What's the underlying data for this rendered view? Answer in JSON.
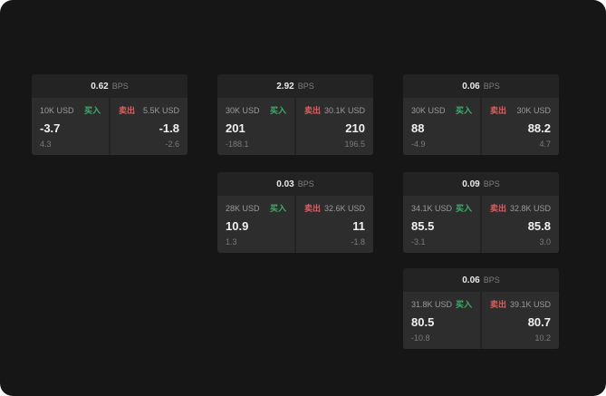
{
  "labels": {
    "bps": "BPS",
    "buy": "买入",
    "sell": "卖出"
  },
  "colors": {
    "buy": "#3fae6a",
    "sell": "#e25d5d",
    "background": "#161616",
    "card": "#232323",
    "panel": "#2d2d2d"
  },
  "cards": [
    {
      "bps": "0.62",
      "buy_size": "10K USD",
      "buy_price": "-3.7",
      "buy_sub": "4.3",
      "sell_size": "5.5K USD",
      "sell_price": "-1.8",
      "sell_sub": "-2.6"
    },
    {
      "bps": "2.92",
      "buy_size": "30K USD",
      "buy_price": "201",
      "buy_sub": "-188.1",
      "sell_size": "30.1K USD",
      "sell_price": "210",
      "sell_sub": "196.5"
    },
    {
      "bps": "0.06",
      "buy_size": "30K USD",
      "buy_price": "88",
      "buy_sub": "-4.9",
      "sell_size": "30K USD",
      "sell_price": "88.2",
      "sell_sub": "4.7"
    },
    {
      "bps": "0.03",
      "buy_size": "28K USD",
      "buy_price": "10.9",
      "buy_sub": "1.3",
      "sell_size": "32.6K USD",
      "sell_price": "11",
      "sell_sub": "-1.8"
    },
    {
      "bps": "0.09",
      "buy_size": "34.1K USD",
      "buy_price": "85.5",
      "buy_sub": "-3.1",
      "sell_size": "32.8K USD",
      "sell_price": "85.8",
      "sell_sub": "3.0"
    },
    {
      "bps": "0.06",
      "buy_size": "31.8K USD",
      "buy_price": "80.5",
      "buy_sub": "-10.8",
      "sell_size": "39.1K USD",
      "sell_price": "80.7",
      "sell_sub": "10.2"
    }
  ]
}
